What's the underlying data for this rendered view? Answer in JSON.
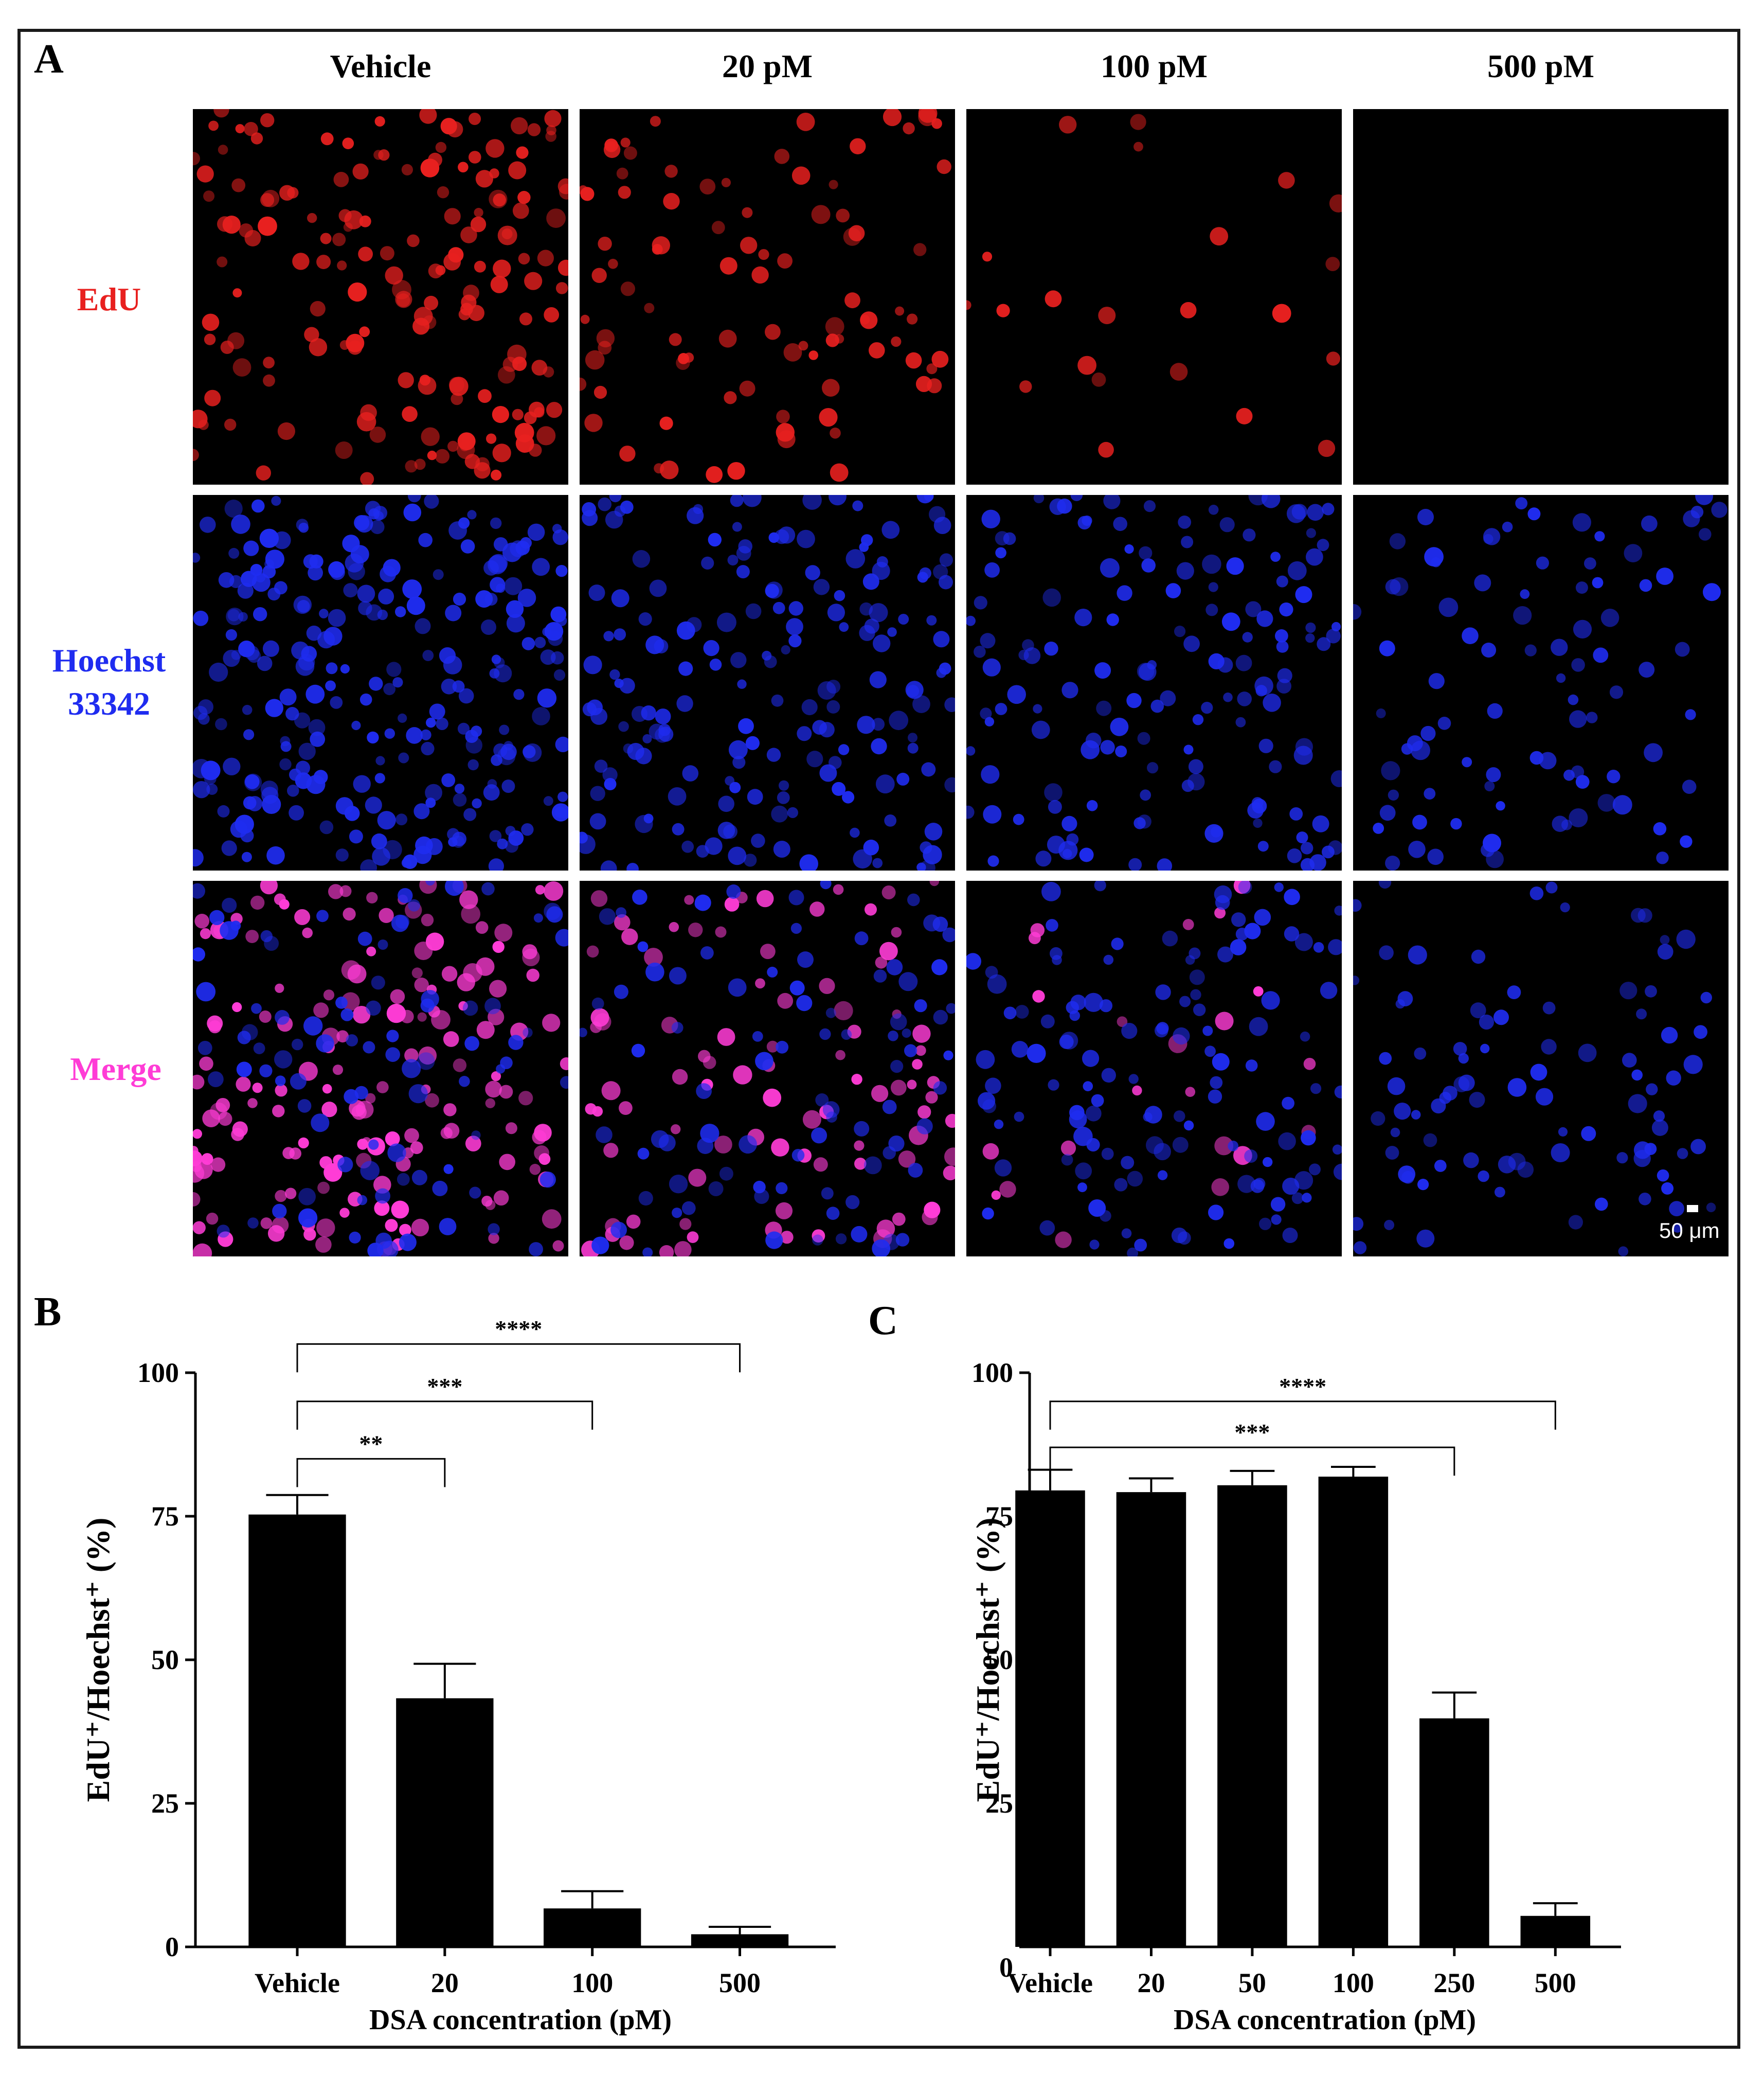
{
  "panels": {
    "a": "A",
    "b": "B",
    "c": "C"
  },
  "colors": {
    "edu": "#e8201f",
    "hoechst": "#1f2cf0",
    "merge": "#ff3cd6",
    "bar": "#000000"
  },
  "micrograph": {
    "columns": [
      "Vehicle",
      "20 pM",
      "100 pM",
      "500 pM"
    ],
    "rows": [
      {
        "label": "EdU",
        "channel": "edu"
      },
      {
        "label": "Hoechst 33342",
        "channel": "hoechst"
      },
      {
        "label": "Merge",
        "channel": "merge"
      }
    ],
    "scale_bar": "50 μm"
  },
  "chart_data": [
    {
      "type": "bar",
      "panel": "B",
      "categories": [
        "Vehicle",
        "20",
        "100",
        "500"
      ],
      "values": [
        75.3,
        43.3,
        6.7,
        2.2
      ],
      "errors": [
        3.4,
        6.0,
        3.0,
        1.3
      ],
      "xlabel": "DSA concentration (pM)",
      "ylabel": "EdU⁺/Hoechst⁺ (%)",
      "ylim": [
        0,
        100
      ],
      "yticks": [
        0,
        25,
        50,
        75,
        100
      ],
      "significance": [
        {
          "from": 0,
          "to": 3,
          "label": "****",
          "y": 105
        },
        {
          "from": 0,
          "to": 2,
          "label": "***",
          "y": 95
        },
        {
          "from": 0,
          "to": 1,
          "label": "**",
          "y": 85
        }
      ]
    },
    {
      "type": "bar",
      "panel": "C",
      "categories": [
        "Vehicle",
        "20",
        "50",
        "100",
        "250",
        "500"
      ],
      "values": [
        79.5,
        79.2,
        80.4,
        81.9,
        39.8,
        5.4
      ],
      "errors": [
        3.6,
        2.4,
        2.5,
        1.7,
        4.5,
        2.2
      ],
      "xlabel": "DSA concentration (pM)",
      "ylabel": "EdU⁺/Hoechst⁺ (%)",
      "ylim": [
        0,
        100
      ],
      "yticks": [
        0,
        25,
        50,
        75,
        100
      ],
      "significance": [
        {
          "from": 0,
          "to": 5,
          "label": "****",
          "y": 95
        },
        {
          "from": 0,
          "to": 4,
          "label": "***",
          "y": 87
        }
      ]
    }
  ]
}
